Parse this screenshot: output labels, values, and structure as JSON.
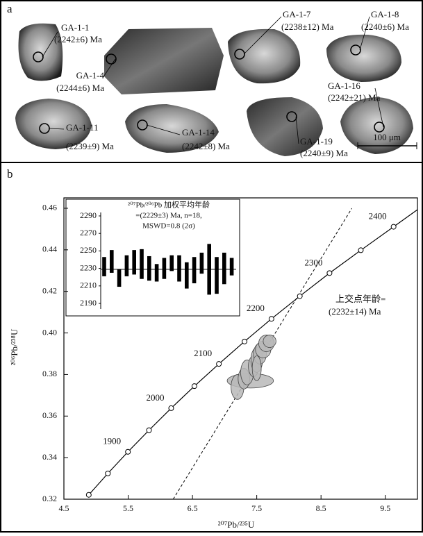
{
  "panel_a": {
    "label": "a",
    "scale_bar": "100 μm",
    "spots": [
      {
        "name": "GA-1-1",
        "age": "(2242±6) Ma"
      },
      {
        "name": "GA-1-4",
        "age": "(2244±6) Ma"
      },
      {
        "name": "GA-1-7",
        "age": "(2238±12) Ma"
      },
      {
        "name": "GA-1-8",
        "age": "(2240±6) Ma"
      },
      {
        "name": "GA-1-11",
        "age": "(2239±9) Ma"
      },
      {
        "name": "GA-1-14",
        "age": "(2242±8) Ma"
      },
      {
        "name": "GA-1-19",
        "age": "(2240±9) Ma"
      },
      {
        "name": "GA-1-16",
        "age": "(2242±21) Ma"
      }
    ]
  },
  "chart_data": {
    "type": "concordia",
    "panel_label": "b",
    "x_label": "²⁰⁷Pb/²³⁵U",
    "y_label": "²⁰⁶Pb/²³⁸U",
    "xlim": [
      4.5,
      10.0
    ],
    "ylim": [
      0.32,
      0.465
    ],
    "xticks": [
      4.5,
      5.5,
      6.5,
      7.5,
      8.5,
      9.5
    ],
    "yticks": [
      0.32,
      0.34,
      0.36,
      0.38,
      {
        "value": 0.4,
        "label": "0.40"
      },
      0.42,
      0.44,
      0.46
    ],
    "concordia": {
      "x": [
        4.887,
        5.184,
        5.496,
        5.824,
        6.169,
        6.53,
        6.911,
        7.31,
        7.729,
        8.17,
        8.632,
        9.119,
        9.629
      ],
      "y": [
        0.3221,
        0.3324,
        0.3428,
        0.3532,
        0.3638,
        0.3744,
        0.3851,
        0.3959,
        0.4068,
        0.4177,
        0.4288,
        0.4398,
        0.4511
      ],
      "age_labels": [
        null,
        null,
        1900,
        null,
        2000,
        null,
        2100,
        null,
        2200,
        null,
        2300,
        null,
        2400
      ]
    },
    "discordia": {
      "x": [
        6.2,
        8.98
      ],
      "y": [
        0.32,
        0.46
      ]
    },
    "upper_intercept": {
      "label": "上交点年龄=",
      "age": "(2232±14) Ma"
    },
    "analyses": {
      "x": [
        7.4,
        7.2,
        7.3,
        7.35,
        7.45,
        7.5,
        7.55,
        7.6,
        7.65,
        7.5,
        7.7
      ],
      "y": [
        0.377,
        0.374,
        0.378,
        0.381,
        0.384,
        0.387,
        0.39,
        0.392,
        0.395,
        0.383,
        0.396
      ],
      "x_err": [
        0.36,
        0.1,
        0.09,
        0.1,
        0.08,
        0.09,
        0.1,
        0.12,
        0.12,
        0.07,
        0.1
      ],
      "y_err": [
        0.0035,
        0.006,
        0.005,
        0.006,
        0.005,
        0.006,
        0.005,
        0.004,
        0.004,
        0.006,
        0.003
      ]
    },
    "inset": {
      "type": "bar",
      "title_lines": [
        "²⁰⁷Pb/²⁰⁶Pb 加权平均年龄",
        "=(2229±3) Ma, n=18,",
        "MSWD=0.8 (2σ)"
      ],
      "ylim": [
        2190,
        2290
      ],
      "yticks": [
        2190,
        2210,
        2230,
        2250,
        2270,
        2290
      ],
      "values": [
        2232,
        2238,
        2219,
        2233,
        2237,
        2235,
        2230,
        2225,
        2230,
        2236,
        2230,
        2222,
        2228,
        2236,
        2229,
        2222,
        2230,
        2232
      ],
      "errors": [
        11,
        13,
        10,
        12,
        14,
        17,
        14,
        10,
        12,
        9,
        15,
        15,
        15,
        12,
        29,
        21,
        18,
        10
      ],
      "mean": 2229
    }
  }
}
